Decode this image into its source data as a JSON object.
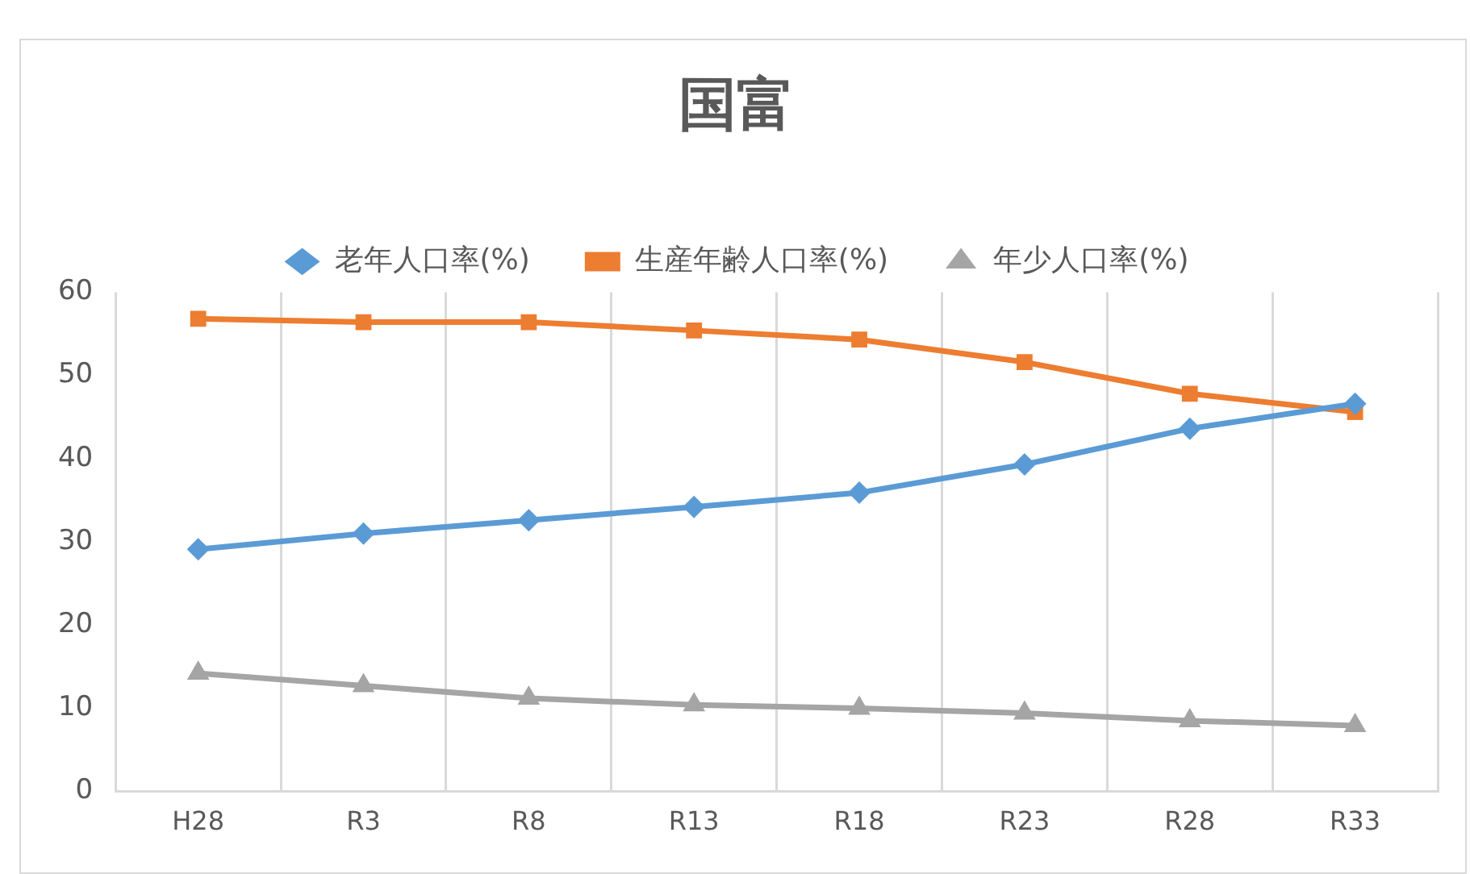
{
  "chart_data": {
    "type": "line",
    "title": "国富",
    "categories": [
      "H28",
      "R3",
      "R8",
      "R13",
      "R18",
      "R23",
      "R28",
      "R33"
    ],
    "series": [
      {
        "name": "老年人口率(%)",
        "color": "#5b9bd5",
        "marker": "diamond",
        "values": [
          29.1,
          31.0,
          32.6,
          34.2,
          35.9,
          39.3,
          43.6,
          46.6
        ]
      },
      {
        "name": "生産年齢人口率(%)",
        "color": "#ed7d31",
        "marker": "square",
        "values": [
          56.8,
          56.4,
          56.4,
          55.4,
          54.3,
          51.6,
          47.8,
          45.6
        ]
      },
      {
        "name": "年少人口率(%)",
        "color": "#a5a5a5",
        "marker": "triangle",
        "values": [
          14.2,
          12.7,
          11.2,
          10.4,
          10.0,
          9.4,
          8.5,
          7.9
        ]
      }
    ],
    "ylim": [
      0,
      60
    ],
    "yticks": [
      0,
      10,
      20,
      30,
      40,
      50,
      60
    ],
    "grid": "x",
    "legend": "top",
    "line_style": "solid"
  }
}
